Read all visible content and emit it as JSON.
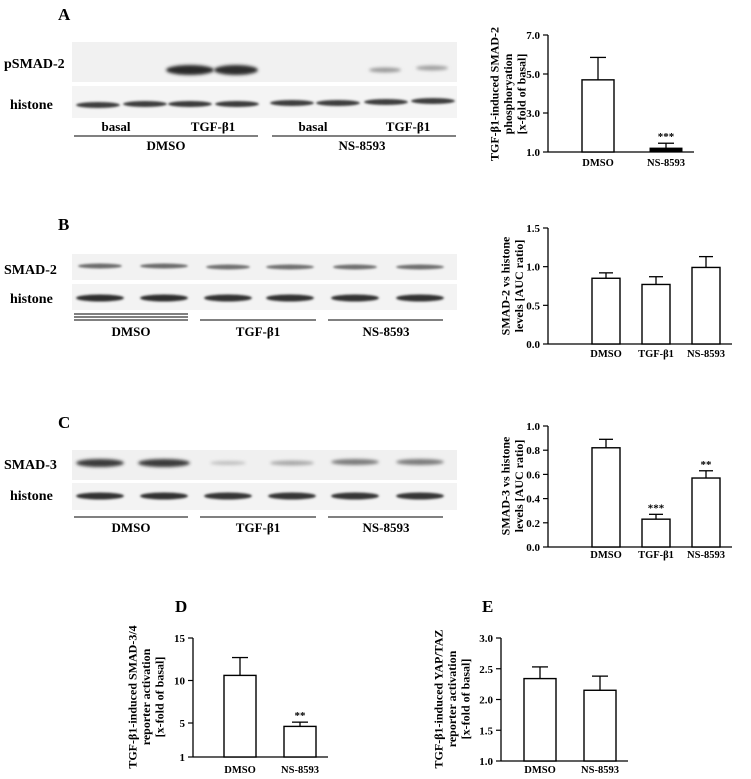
{
  "panels": {
    "A": {
      "letter": "A",
      "blot_labels": [
        "pSMAD-2",
        "histone"
      ],
      "lane_labels": [
        "basal",
        "TGF-β1",
        "basal",
        "TGF-β1"
      ],
      "group_labels": [
        "DMSO",
        "NS-8593"
      ]
    },
    "B": {
      "letter": "B",
      "blot_labels": [
        "SMAD-2",
        "histone"
      ],
      "group_labels": [
        "DMSO",
        "TGF-β1",
        "NS-8593"
      ]
    },
    "C": {
      "letter": "C",
      "blot_labels": [
        "SMAD-3",
        "histone"
      ],
      "group_labels": [
        "DMSO",
        "TGF-β1",
        "NS-8593"
      ]
    },
    "D": {
      "letter": "D"
    },
    "E": {
      "letter": "E"
    }
  },
  "chart_data": [
    {
      "panel": "A",
      "type": "bar",
      "ylabel_lines": [
        "TGF-β1-induced SMAD-2",
        "phosphoryation",
        "[x-fold of basal]"
      ],
      "ylim": [
        1,
        7
      ],
      "yticks": [
        "1.0",
        "3.0",
        "5.0",
        "7.0"
      ],
      "ytick_values": [
        1,
        3,
        5,
        7
      ],
      "categories": [
        "DMSO",
        "NS-8593"
      ],
      "values": [
        4.7,
        1.2
      ],
      "errors": [
        1.15,
        0.25
      ],
      "fills": [
        "#ffffff",
        "#000000"
      ],
      "annotations": [
        "",
        "***"
      ]
    },
    {
      "panel": "B",
      "type": "bar",
      "ylabel_lines": [
        "SMAD-2 vs histone",
        "levels [AUC ratio]"
      ],
      "ylim": [
        0,
        1.5
      ],
      "yticks": [
        "0.0",
        "0.5",
        "1.0",
        "1.5"
      ],
      "ytick_values": [
        0,
        0.5,
        1.0,
        1.5
      ],
      "categories": [
        "DMSO",
        "TGF-β1",
        "NS-8593"
      ],
      "values": [
        0.85,
        0.77,
        0.99
      ],
      "errors": [
        0.07,
        0.1,
        0.14
      ],
      "fills": [
        "#ffffff",
        "#ffffff",
        "#ffffff"
      ],
      "annotations": [
        "",
        "",
        ""
      ]
    },
    {
      "panel": "C",
      "type": "bar",
      "ylabel_lines": [
        "SMAD-3 vs histone",
        "levels [AUC ratio]"
      ],
      "ylim": [
        0,
        1.0
      ],
      "yticks": [
        "0.0",
        "0.2",
        "0.4",
        "0.6",
        "0.8",
        "1.0"
      ],
      "ytick_values": [
        0,
        0.2,
        0.4,
        0.6,
        0.8,
        1.0
      ],
      "categories": [
        "DMSO",
        "TGF-β1",
        "NS-8593"
      ],
      "values": [
        0.82,
        0.23,
        0.57
      ],
      "errors": [
        0.07,
        0.04,
        0.06
      ],
      "fills": [
        "#ffffff",
        "#ffffff",
        "#ffffff"
      ],
      "annotations": [
        "",
        "***",
        "**"
      ]
    },
    {
      "panel": "D",
      "type": "bar",
      "ylabel_lines": [
        "TGF-β1-induced SMAD-3/4",
        "reporter activation",
        "[x-fold of basal]"
      ],
      "ylim": [
        1,
        15
      ],
      "yticks": [
        "1",
        "5",
        "10",
        "15"
      ],
      "ytick_values": [
        1,
        5,
        10,
        15
      ],
      "categories": [
        "DMSO",
        "NS-8593"
      ],
      "values": [
        10.6,
        4.6
      ],
      "errors": [
        2.1,
        0.5
      ],
      "fills": [
        "#ffffff",
        "#ffffff"
      ],
      "annotations": [
        "",
        "**"
      ]
    },
    {
      "panel": "E",
      "type": "bar",
      "ylabel_lines": [
        "TGF-β1-induced YAP/TAZ",
        "reporter activation",
        "[x-fold of basal]"
      ],
      "ylim": [
        1.0,
        3.0
      ],
      "yticks": [
        "1.0",
        "1.5",
        "2.0",
        "2.5",
        "3.0"
      ],
      "ytick_values": [
        1.0,
        1.5,
        2.0,
        2.5,
        3.0
      ],
      "categories": [
        "DMSO",
        "NS-8593"
      ],
      "values": [
        2.34,
        2.15
      ],
      "errors": [
        0.19,
        0.23
      ],
      "fills": [
        "#ffffff",
        "#ffffff"
      ],
      "annotations": [
        "",
        ""
      ]
    }
  ]
}
